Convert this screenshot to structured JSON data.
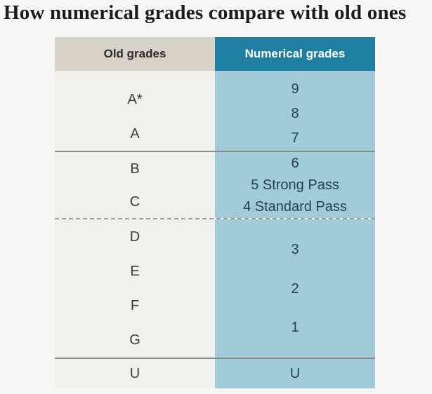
{
  "page": {
    "title": "How numerical grades compare with old ones"
  },
  "table": {
    "headers": {
      "old": "Old grades",
      "numerical": "Numerical grades"
    },
    "sections": [
      {
        "old": [
          "A*",
          "A"
        ],
        "numerical": [
          "9",
          "8",
          "7"
        ],
        "divider_after": "solid"
      },
      {
        "old": [
          "B",
          "C"
        ],
        "numerical": [
          "6",
          "5 Strong Pass",
          "4 Standard Pass"
        ],
        "divider_after": "dashed"
      },
      {
        "old": [
          "D",
          "E",
          "F",
          "G"
        ],
        "numerical": [
          "3",
          "2",
          "1"
        ],
        "divider_after": "solid"
      },
      {
        "old": [
          "U"
        ],
        "numerical": [
          "U"
        ],
        "divider_after": "none"
      }
    ]
  },
  "chart_data": {
    "type": "table",
    "title": "How numerical grades compare with old ones",
    "columns": [
      "Old grades",
      "Numerical grades"
    ],
    "rows": [
      [
        "A*",
        "9"
      ],
      [
        "A*/A",
        "8"
      ],
      [
        "A",
        "7"
      ],
      [
        "B",
        "6"
      ],
      [
        "B/C",
        "5 Strong Pass"
      ],
      [
        "C",
        "4 Standard Pass"
      ],
      [
        "D",
        "3"
      ],
      [
        "E",
        "2"
      ],
      [
        "F/G",
        "1"
      ],
      [
        "U",
        "U"
      ]
    ],
    "group_dividers": [
      "solid after grade 7",
      "dashed after grade 4 Standard Pass",
      "solid after grade 1"
    ]
  },
  "colors": {
    "page_bg": "#f7f6f4",
    "title_text": "#1c1c1a",
    "header_old_bg": "#d8d2c8",
    "header_old_text": "#2e2c28",
    "header_num_bg": "#1f7fa3",
    "header_num_text": "#ffffff",
    "body_old_bg": "#f2f0ea",
    "body_num_bg": "#a2cbda",
    "old_grade_text": "#3b3b39",
    "num_grade_text": "#27404d",
    "divider_solid": "#8b8b89",
    "divider_dashed": "#9c9c9a"
  }
}
